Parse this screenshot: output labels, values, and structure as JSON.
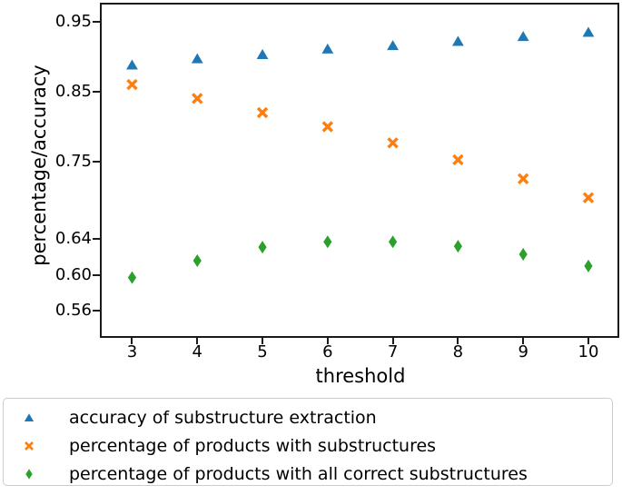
{
  "chart_data": {
    "type": "scatter",
    "title": "",
    "xlabel": "threshold",
    "ylabel": "percentage/accuracy",
    "grid": false,
    "legend_position": "bottom",
    "x": [
      3,
      4,
      5,
      6,
      7,
      8,
      9,
      10
    ],
    "series": [
      {
        "name": "accuracy of substructure extraction",
        "marker": "triangle-up",
        "color": "#1f77b4",
        "values": [
          0.888,
          0.897,
          0.903,
          0.911,
          0.916,
          0.922,
          0.929,
          0.935
        ]
      },
      {
        "name": "percentage of products with substructures",
        "marker": "x",
        "color": "#ff7f0e",
        "values": [
          0.86,
          0.84,
          0.82,
          0.8,
          0.777,
          0.753,
          0.726,
          0.699
        ]
      },
      {
        "name": "percentage of products with all correct substructures",
        "marker": "thin-diamond",
        "color": "#2ca02c",
        "values": [
          0.597,
          0.616,
          0.631,
          0.637,
          0.637,
          0.632,
          0.623,
          0.61
        ]
      }
    ],
    "x_axis": {
      "ticks": [
        "3",
        "4",
        "5",
        "6",
        "7",
        "8",
        "9",
        "10"
      ],
      "min": 3,
      "max": 10,
      "frac_start": 0.062,
      "frac_step": 0.1255
    },
    "y_axis": {
      "note": "non-uniform tick spacing as rendered",
      "ticks": [
        {
          "label": "0.95",
          "value": 0.95,
          "pos": 0.0569
        },
        {
          "label": "0.85",
          "value": 0.85,
          "pos": 0.2648
        },
        {
          "label": "0.75",
          "value": 0.75,
          "pos": 0.4751
        },
        {
          "label": "0.64",
          "value": 0.64,
          "pos": 0.7054
        },
        {
          "label": "0.60",
          "value": 0.6,
          "pos": 0.8122
        },
        {
          "label": "0.56",
          "value": 0.56,
          "pos": 0.9179
        }
      ]
    },
    "colors": {
      "axis": "#1a1a1a",
      "legend_border": "#cccccc",
      "background": "#ffffff"
    }
  }
}
